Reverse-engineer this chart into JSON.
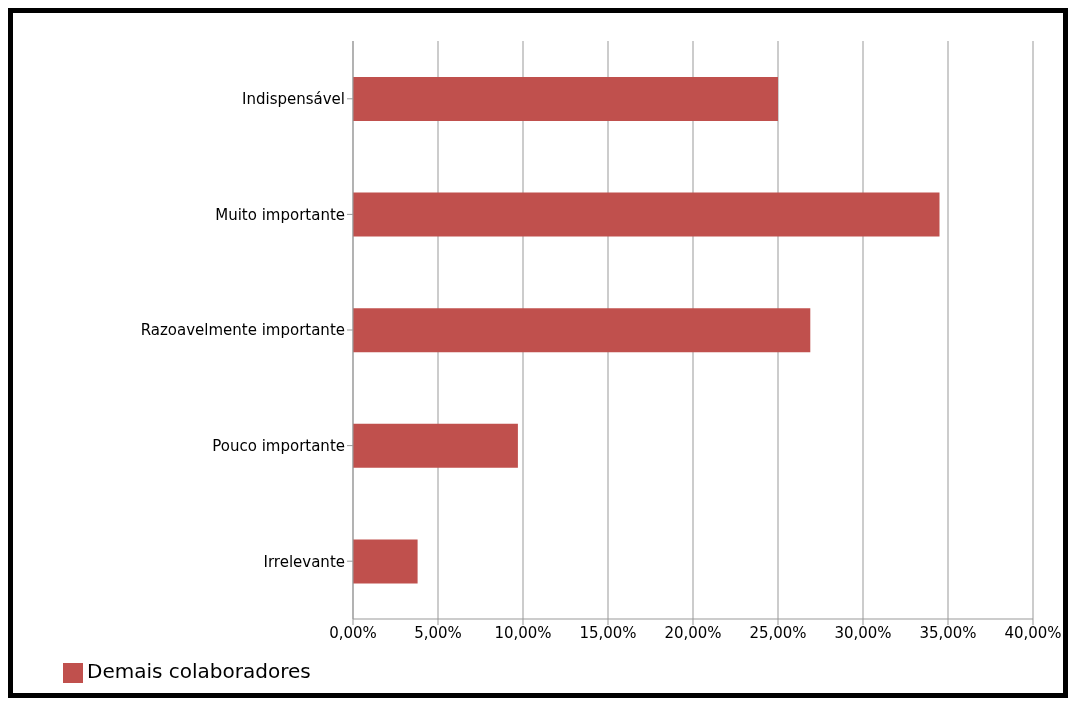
{
  "chart_data": {
    "type": "bar",
    "orientation": "horizontal",
    "categories": [
      "Indispensável",
      "Muito importante",
      "Razoavelmente importante",
      "Pouco importante",
      "Irrelevante"
    ],
    "series": [
      {
        "name": "Demais colaboradores",
        "color": "#c0504d",
        "values": [
          25,
          34.5,
          26.9,
          9.7,
          3.8
        ]
      }
    ],
    "xlim": [
      0,
      40
    ],
    "xticks": [
      {
        "value": 0,
        "label": "0,00%"
      },
      {
        "value": 5,
        "label": "5,00%"
      },
      {
        "value": 10,
        "label": "10,00%"
      },
      {
        "value": 15,
        "label": "15,00%"
      },
      {
        "value": 20,
        "label": "20,00%"
      },
      {
        "value": 25,
        "label": "25,00%"
      },
      {
        "value": 30,
        "label": "30,00%"
      },
      {
        "value": 35,
        "label": "35,00%"
      },
      {
        "value": 40,
        "label": "40,00%"
      }
    ],
    "grid": "x",
    "legend": "bottom left"
  }
}
